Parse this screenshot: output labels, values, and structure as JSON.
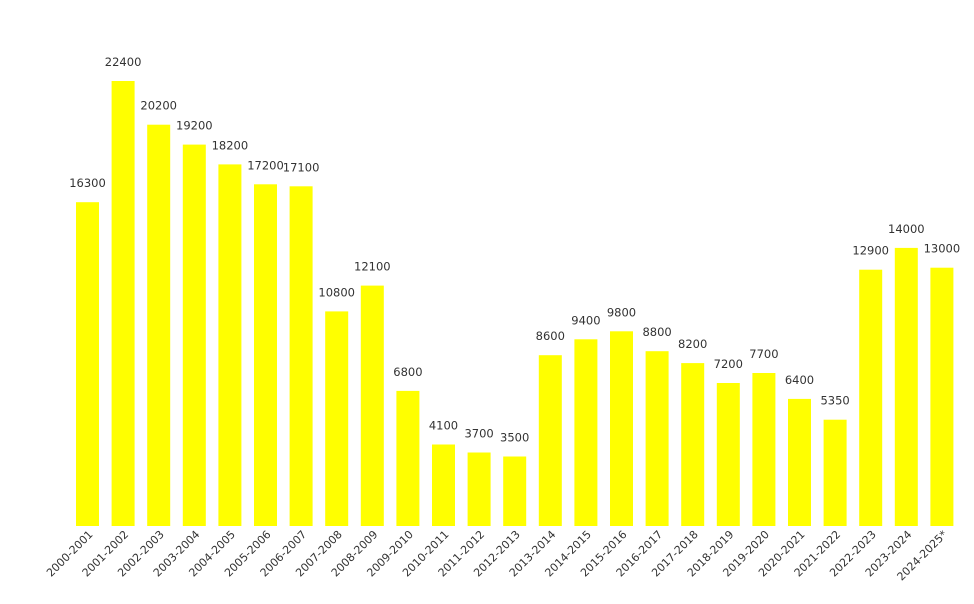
{
  "chart_data": {
    "type": "bar",
    "title": "",
    "xlabel": "",
    "ylabel": "",
    "grid": false,
    "legend": "none",
    "ylim": [
      0,
      22400
    ],
    "bar_color": "#ffff00",
    "label_color": "#333333",
    "categories": [
      "2000-2001",
      "2001-2002",
      "2002-2003",
      "2003-2004",
      "2004-2005",
      "2005-2006",
      "2006-2007",
      "2007-2008",
      "2008-2009",
      "2009-2010",
      "2010-2011",
      "2011-2012",
      "2012-2013",
      "2013-2014",
      "2014-2015",
      "2015-2016",
      "2016-2017",
      "2017-2018",
      "2018-2019",
      "2019-2020",
      "2020-2021",
      "2021-2022",
      "2022-2023",
      "2023-2024",
      "2024-2025*"
    ],
    "values": [
      16300,
      22400,
      20200,
      19200,
      18200,
      17200,
      17100,
      10800,
      12100,
      6800,
      4100,
      3700,
      3500,
      8600,
      9400,
      9800,
      8800,
      8200,
      7200,
      7700,
      6400,
      5350,
      12900,
      14000,
      13000
    ]
  }
}
